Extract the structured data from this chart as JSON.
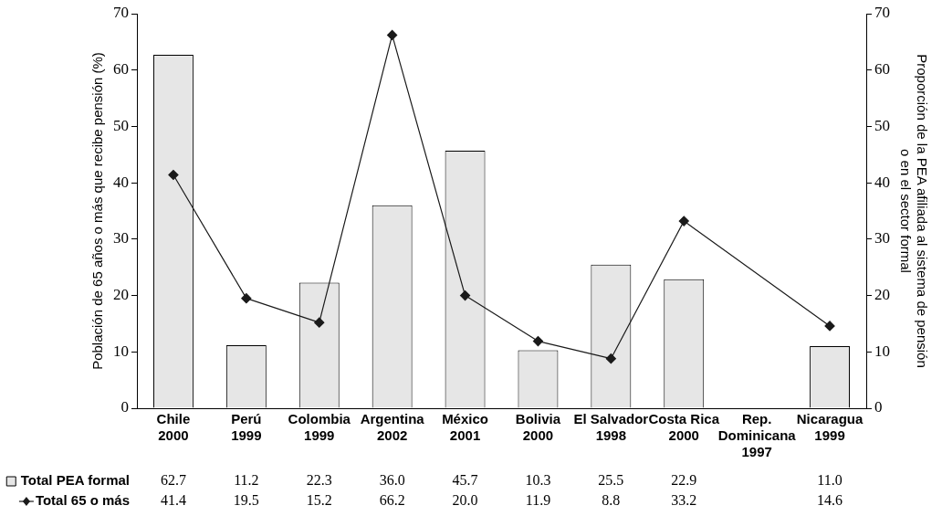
{
  "chart_data": {
    "type": "bar",
    "ylabel": "Población de 65 años o más que recibe pensión (%)",
    "y2label": "Proporción de la PEA afiliada al sistema de pensión\no en el sector formal",
    "categories": [
      "Chile\n2000",
      "Perú\n1999",
      "Colombia\n1999",
      "Argentina\n2002",
      "México\n2001",
      "Bolivia\n2000",
      "El Salvador\n1998",
      "Costa Rica\n2000",
      "Rep.\nDominicana\n1997",
      "Nicaragua\n1999"
    ],
    "series": [
      {
        "name": "Total PEA formal",
        "axis": "y2",
        "color": "#e6e6e6",
        "values": [
          62.7,
          11.2,
          22.3,
          36.0,
          45.7,
          10.3,
          25.5,
          22.9,
          null,
          11.0
        ],
        "value_labels": [
          "62.7",
          "11.2",
          "22.3",
          "36.0",
          "45.7",
          "10.3",
          "25.5",
          "22.9",
          null,
          "11.0"
        ]
      },
      {
        "name": "Total 65 o más",
        "type": "line",
        "color": "#1a1a1a",
        "values": [
          41.4,
          19.5,
          15.2,
          66.2,
          20.0,
          11.9,
          8.8,
          33.2,
          null,
          14.6
        ],
        "value_labels": [
          "41.4",
          "19.5",
          "15.2",
          "66.2",
          "20.0",
          "11.9",
          "8.8",
          "33.2",
          null,
          "14.6"
        ]
      }
    ],
    "ylim": [
      0,
      70
    ],
    "yticks": [
      0,
      10,
      20,
      30,
      40,
      50,
      60,
      70
    ],
    "y2lim": [
      0,
      70
    ],
    "y2ticks": [
      0,
      10,
      20,
      30,
      40,
      50,
      60,
      70
    ],
    "marker": "diamond",
    "legend": "bottom left"
  }
}
